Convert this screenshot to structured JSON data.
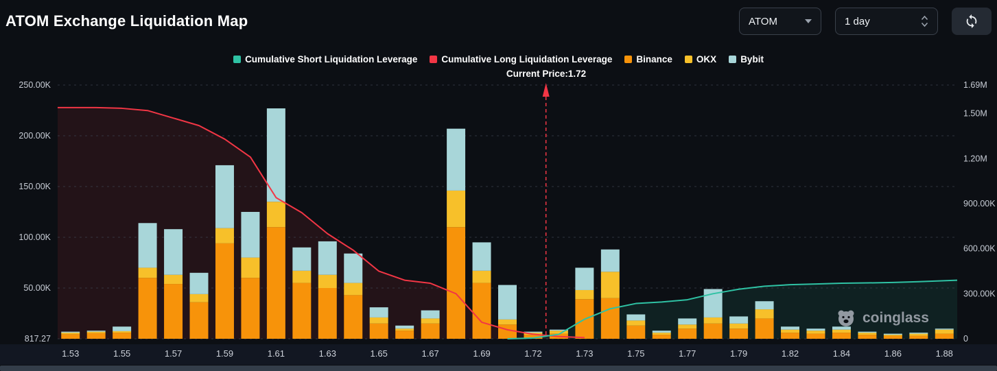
{
  "header": {
    "title": "ATOM Exchange Liquidation Map",
    "symbol_select_value": "ATOM",
    "period_select_value": "1 day"
  },
  "watermark_text": "coinglass",
  "chart_data": {
    "type": "bar",
    "title": "ATOM Exchange Liquidation Map",
    "current_price": 1.72,
    "current_price_label": "Current Price:1.72",
    "buckets": 35,
    "x_tick_labels": [
      "1.53",
      "1.55",
      "1.57",
      "1.59",
      "1.61",
      "1.63",
      "1.65",
      "1.67",
      "1.69",
      "1.72",
      "1.73",
      "1.75",
      "1.77",
      "1.79",
      "1.82",
      "1.84",
      "1.86",
      "1.88"
    ],
    "left_axis": {
      "max": 250000,
      "ticks": [
        {
          "label": "817.27",
          "value": 0
        },
        {
          "label": "50.00K",
          "value": 50000
        },
        {
          "label": "100.00K",
          "value": 100000
        },
        {
          "label": "150.00K",
          "value": 150000
        },
        {
          "label": "200.00K",
          "value": 200000
        },
        {
          "label": "250.00K",
          "value": 250000
        }
      ]
    },
    "right_axis": {
      "max": 1690000,
      "ticks": [
        {
          "label": "0",
          "value": 0
        },
        {
          "label": "300.00K",
          "value": 300000
        },
        {
          "label": "600.00K",
          "value": 600000
        },
        {
          "label": "900.00K",
          "value": 900000
        },
        {
          "label": "1.20M",
          "value": 1200000
        },
        {
          "label": "1.50M",
          "value": 1500000
        },
        {
          "label": "1.69M",
          "value": 1690000
        }
      ]
    },
    "bar_series": [
      {
        "name": "Binance",
        "color": "#f7930a",
        "values": [
          4500,
          5500,
          6000,
          60000,
          54000,
          36000,
          94000,
          60000,
          110000,
          55000,
          50000,
          43000,
          15000,
          8000,
          15000,
          110000,
          55000,
          14000,
          4000,
          5000,
          39000,
          40000,
          13000,
          4000,
          10000,
          15000,
          10000,
          20000,
          6000,
          5000,
          6000,
          4000,
          3000,
          3000,
          5000
        ]
      },
      {
        "name": "OKX",
        "color": "#f7c02a",
        "values": [
          1500,
          1500,
          1500,
          10000,
          9000,
          8000,
          15000,
          20000,
          25000,
          12000,
          13000,
          12000,
          6000,
          2000,
          5000,
          36000,
          12000,
          5000,
          2000,
          3000,
          9000,
          26000,
          5000,
          2000,
          4000,
          6000,
          5000,
          9000,
          3000,
          3000,
          3000,
          2000,
          1000,
          2000,
          4000
        ]
      },
      {
        "name": "Bybit",
        "color": "#a8d6d9",
        "values": [
          1000,
          1000,
          4500,
          44000,
          45000,
          21000,
          62000,
          45000,
          92000,
          23000,
          33000,
          29000,
          10000,
          3000,
          8000,
          61000,
          28000,
          34000,
          1000,
          1000,
          22000,
          22000,
          6000,
          2000,
          6000,
          28000,
          7000,
          8000,
          3000,
          2000,
          3000,
          1000,
          1000,
          1000,
          1000
        ]
      }
    ],
    "line_series": [
      {
        "name": "Cumulative Long Liquidation Leverage",
        "type": "line",
        "axis": "right",
        "color": "#f23645",
        "values": [
          1540000,
          1540000,
          1535000,
          1520000,
          1470000,
          1420000,
          1330000,
          1210000,
          940000,
          840000,
          700000,
          590000,
          450000,
          390000,
          370000,
          300000,
          110000,
          60000,
          30000,
          15000,
          8000,
          null,
          null,
          null,
          null,
          null,
          null,
          null,
          null,
          null,
          null,
          null,
          null,
          null,
          null
        ]
      },
      {
        "name": "Cumulative Short Liquidation Leverage",
        "type": "line",
        "axis": "right",
        "color": "#2fc2a4",
        "values": [
          null,
          null,
          null,
          null,
          null,
          null,
          null,
          null,
          null,
          null,
          null,
          null,
          null,
          null,
          null,
          null,
          null,
          0,
          5000,
          30000,
          130000,
          200000,
          235000,
          245000,
          260000,
          300000,
          330000,
          350000,
          360000,
          365000,
          370000,
          372000,
          375000,
          380000,
          390000
        ]
      }
    ],
    "legend_position": "top-center",
    "grid": "horizontal-dashed"
  }
}
